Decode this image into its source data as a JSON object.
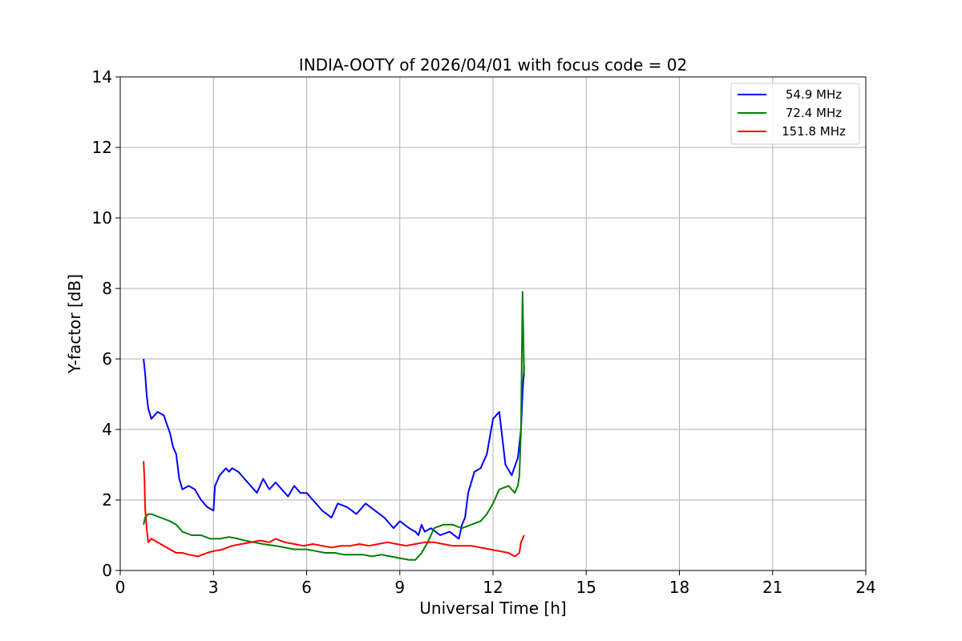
{
  "chart_data": {
    "type": "line",
    "title": "INDIA-OOTY of 2026/04/01 with focus code = 02",
    "xlabel": "Universal Time [h]",
    "ylabel": "Y-factor [dB]",
    "xlim": [
      0,
      24
    ],
    "ylim": [
      0,
      14
    ],
    "xticks": [
      "0",
      "3",
      "6",
      "9",
      "12",
      "15",
      "18",
      "21",
      "24"
    ],
    "yticks": [
      "0",
      "2",
      "4",
      "6",
      "8",
      "10",
      "12",
      "14"
    ],
    "grid": true,
    "legend_position": "top-right",
    "series": [
      {
        "name": "54.9 MHz",
        "color": "#0000ff",
        "x": [
          0.75,
          0.8,
          0.85,
          0.9,
          1.0,
          1.2,
          1.4,
          1.6,
          1.7,
          1.8,
          1.9,
          2.0,
          2.2,
          2.4,
          2.6,
          2.8,
          3.0,
          3.05,
          3.2,
          3.4,
          3.5,
          3.6,
          3.8,
          4.0,
          4.2,
          4.4,
          4.6,
          4.8,
          5.0,
          5.2,
          5.4,
          5.6,
          5.8,
          6.0,
          6.2,
          6.5,
          6.8,
          7.0,
          7.3,
          7.6,
          7.9,
          8.2,
          8.5,
          8.8,
          9.0,
          9.3,
          9.5,
          9.6,
          9.7,
          9.8,
          10.0,
          10.3,
          10.6,
          10.9,
          11.0,
          11.1,
          11.2,
          11.4,
          11.6,
          11.8,
          12.0,
          12.2,
          12.4,
          12.6,
          12.8,
          12.9,
          12.95,
          13.0
        ],
        "values": [
          6.0,
          5.6,
          5.0,
          4.6,
          4.3,
          4.5,
          4.4,
          3.9,
          3.5,
          3.3,
          2.6,
          2.3,
          2.4,
          2.3,
          2.0,
          1.8,
          1.7,
          2.4,
          2.7,
          2.9,
          2.8,
          2.9,
          2.8,
          2.6,
          2.4,
          2.2,
          2.6,
          2.3,
          2.5,
          2.3,
          2.1,
          2.4,
          2.2,
          2.2,
          2.0,
          1.7,
          1.5,
          1.9,
          1.8,
          1.6,
          1.9,
          1.7,
          1.5,
          1.2,
          1.4,
          1.2,
          1.1,
          1.0,
          1.3,
          1.1,
          1.2,
          1.0,
          1.1,
          0.9,
          1.3,
          1.5,
          2.2,
          2.8,
          2.9,
          3.3,
          4.3,
          4.5,
          3.0,
          2.7,
          3.2,
          4.0,
          5.0,
          5.8
        ]
      },
      {
        "name": "72.4 MHz",
        "color": "#008000",
        "x": [
          0.75,
          0.8,
          0.9,
          1.0,
          1.3,
          1.6,
          1.8,
          2.0,
          2.3,
          2.6,
          2.9,
          3.2,
          3.5,
          3.8,
          4.0,
          4.3,
          4.6,
          5.0,
          5.3,
          5.6,
          6.0,
          6.3,
          6.6,
          6.9,
          7.2,
          7.5,
          7.8,
          8.1,
          8.4,
          8.7,
          9.0,
          9.3,
          9.5,
          9.7,
          9.9,
          10.1,
          10.4,
          10.7,
          11.0,
          11.3,
          11.6,
          11.8,
          12.0,
          12.2,
          12.5,
          12.7,
          12.8,
          12.85,
          12.9,
          12.95,
          13.0
        ],
        "values": [
          1.3,
          1.5,
          1.6,
          1.6,
          1.5,
          1.4,
          1.3,
          1.1,
          1.0,
          1.0,
          0.9,
          0.9,
          0.95,
          0.9,
          0.85,
          0.8,
          0.75,
          0.7,
          0.65,
          0.6,
          0.6,
          0.55,
          0.5,
          0.5,
          0.45,
          0.45,
          0.45,
          0.4,
          0.45,
          0.4,
          0.35,
          0.3,
          0.3,
          0.5,
          0.8,
          1.2,
          1.3,
          1.3,
          1.2,
          1.3,
          1.4,
          1.6,
          1.9,
          2.3,
          2.4,
          2.2,
          2.4,
          2.7,
          4.0,
          7.9,
          5.5
        ]
      },
      {
        "name": "151.8 MHz",
        "color": "#ff0000",
        "x": [
          0.75,
          0.78,
          0.8,
          0.85,
          0.9,
          1.0,
          1.2,
          1.4,
          1.6,
          1.8,
          2.0,
          2.2,
          2.5,
          2.8,
          3.0,
          3.3,
          3.6,
          3.9,
          4.2,
          4.5,
          4.8,
          5.0,
          5.3,
          5.6,
          5.9,
          6.2,
          6.5,
          6.8,
          7.1,
          7.4,
          7.7,
          8.0,
          8.3,
          8.6,
          8.9,
          9.2,
          9.5,
          9.8,
          10.1,
          10.4,
          10.7,
          11.0,
          11.3,
          11.6,
          11.9,
          12.2,
          12.5,
          12.7,
          12.85,
          12.9,
          13.0
        ],
        "values": [
          3.1,
          2.6,
          1.8,
          1.2,
          0.8,
          0.9,
          0.8,
          0.7,
          0.6,
          0.5,
          0.5,
          0.45,
          0.4,
          0.5,
          0.55,
          0.6,
          0.7,
          0.75,
          0.8,
          0.85,
          0.8,
          0.9,
          0.8,
          0.75,
          0.7,
          0.75,
          0.7,
          0.65,
          0.7,
          0.7,
          0.75,
          0.7,
          0.75,
          0.8,
          0.75,
          0.7,
          0.75,
          0.8,
          0.8,
          0.75,
          0.7,
          0.7,
          0.7,
          0.65,
          0.6,
          0.55,
          0.5,
          0.4,
          0.5,
          0.8,
          1.0
        ]
      }
    ],
    "annotations": []
  }
}
